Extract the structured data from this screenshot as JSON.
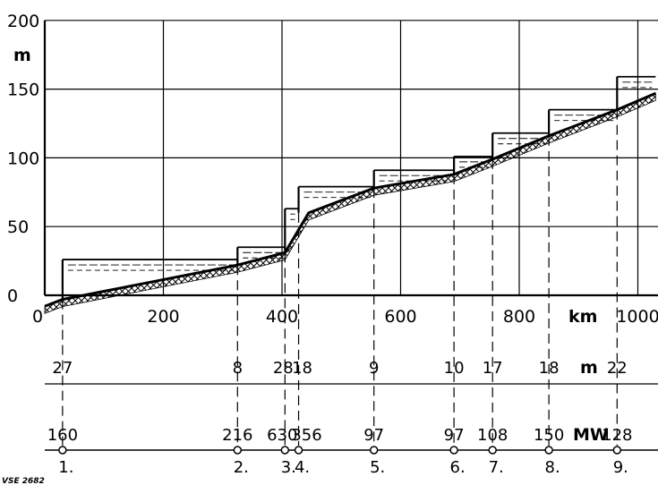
{
  "chart_data": {
    "type": "profile",
    "x_unit": "km",
    "y_unit": "m",
    "xlim": [
      0,
      1030
    ],
    "ylim": [
      0,
      200
    ],
    "x_ticks": [
      "0",
      "200",
      "400",
      "600",
      "800",
      "1000"
    ],
    "y_ticks": [
      "0",
      "50",
      "100",
      "150",
      "200"
    ],
    "grid": true,
    "riverbed": [
      {
        "km": 0,
        "m": -8
      },
      {
        "km": 30,
        "m": -3
      },
      {
        "km": 325,
        "m": 22
      },
      {
        "km": 405,
        "m": 31
      },
      {
        "km": 445,
        "m": 60
      },
      {
        "km": 555,
        "m": 78
      },
      {
        "km": 690,
        "m": 88
      },
      {
        "km": 755,
        "m": 99
      },
      {
        "km": 850,
        "m": 116
      },
      {
        "km": 965,
        "m": 135
      },
      {
        "km": 1030,
        "m": 147
      }
    ],
    "stations": [
      {
        "number": "1.",
        "km": 30,
        "head_m": "27",
        "power_mw": "160",
        "pool_from_km": 30,
        "pool_to_km": 325,
        "pool_level_m": 26
      },
      {
        "number": "2.",
        "km": 325,
        "head_m": "8",
        "power_mw": "216",
        "pool_from_km": 325,
        "pool_to_km": 405,
        "pool_level_m": 35
      },
      {
        "number": "3.",
        "km": 405,
        "head_m": "28",
        "power_mw": "630",
        "pool_from_km": 405,
        "pool_to_km": 428,
        "pool_level_m": 63
      },
      {
        "number": "4.",
        "km": 428,
        "head_m": "18",
        "power_mw": "356",
        "pool_from_km": 428,
        "pool_to_km": 555,
        "pool_level_m": 79
      },
      {
        "number": "5.",
        "km": 555,
        "head_m": "9",
        "power_mw": "97",
        "pool_from_km": 555,
        "pool_to_km": 690,
        "pool_level_m": 91
      },
      {
        "number": "6.",
        "km": 690,
        "head_m": "10",
        "power_mw": "97",
        "pool_from_km": 690,
        "pool_to_km": 755,
        "pool_level_m": 101
      },
      {
        "number": "7.",
        "km": 755,
        "head_m": "17",
        "power_mw": "108",
        "pool_from_km": 755,
        "pool_to_km": 850,
        "pool_level_m": 118
      },
      {
        "number": "8.",
        "km": 850,
        "head_m": "18",
        "power_mw": "150",
        "pool_from_km": 850,
        "pool_to_km": 965,
        "pool_level_m": 135
      },
      {
        "number": "9.",
        "km": 965,
        "head_m": "22",
        "power_mw": "128",
        "pool_from_km": 965,
        "pool_to_km": 1030,
        "pool_level_m": 159
      }
    ],
    "head_unit_label": "m",
    "power_unit_label": "MW"
  },
  "figure_code": "VSE 2682"
}
